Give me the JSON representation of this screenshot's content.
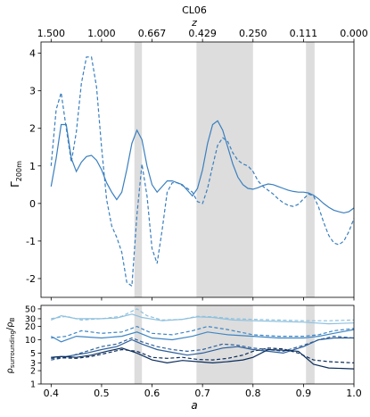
{
  "chart_data": [
    {
      "type": "line",
      "title": "CL06",
      "xlabel": "",
      "ylabel": "Γ200m",
      "ylabel_main": "Γ",
      "ylabel_sub": "200m",
      "top_axis_label": "z",
      "top_axis_ticks": [
        "1.500",
        "1.000",
        "0.667",
        "0.429",
        "0.250",
        "0.111",
        "0.000"
      ],
      "top_axis_tick_a": [
        0.4,
        0.5,
        0.6,
        0.7,
        0.8,
        0.9,
        1.0
      ],
      "xlim": [
        0.38,
        1.0
      ],
      "ylim": [
        -2.5,
        4.3
      ],
      "yticks": [
        -2,
        -1,
        0,
        1,
        2,
        3,
        4
      ],
      "grid": false,
      "shaded_bands": [
        [
          0.565,
          0.58
        ],
        [
          0.688,
          0.8
        ],
        [
          0.905,
          0.922
        ]
      ],
      "series": [
        {
          "style": "solid",
          "color": "#3a7fbf",
          "x": [
            0.4,
            0.41,
            0.42,
            0.43,
            0.44,
            0.45,
            0.46,
            0.47,
            0.48,
            0.49,
            0.5,
            0.51,
            0.52,
            0.53,
            0.54,
            0.55,
            0.56,
            0.57,
            0.58,
            0.59,
            0.6,
            0.61,
            0.62,
            0.63,
            0.64,
            0.65,
            0.66,
            0.67,
            0.68,
            0.69,
            0.7,
            0.71,
            0.72,
            0.73,
            0.74,
            0.75,
            0.76,
            0.77,
            0.78,
            0.79,
            0.8,
            0.81,
            0.82,
            0.83,
            0.84,
            0.85,
            0.86,
            0.87,
            0.88,
            0.89,
            0.9,
            0.91,
            0.92,
            0.93,
            0.94,
            0.95,
            0.96,
            0.97,
            0.98,
            0.99,
            1.0
          ],
          "y": [
            0.45,
            1.2,
            2.1,
            2.1,
            1.2,
            0.85,
            1.1,
            1.25,
            1.28,
            1.15,
            0.9,
            0.55,
            0.3,
            0.1,
            0.3,
            0.9,
            1.6,
            1.95,
            1.7,
            1.0,
            0.5,
            0.3,
            0.45,
            0.6,
            0.6,
            0.55,
            0.5,
            0.35,
            0.2,
            0.4,
            0.9,
            1.6,
            2.1,
            2.2,
            1.95,
            1.5,
            1.05,
            0.7,
            0.5,
            0.4,
            0.38,
            0.42,
            0.48,
            0.52,
            0.5,
            0.45,
            0.4,
            0.35,
            0.32,
            0.3,
            0.3,
            0.28,
            0.22,
            0.12,
            0.0,
            -0.1,
            -0.18,
            -0.22,
            -0.25,
            -0.22,
            -0.12
          ]
        },
        {
          "style": "dashed",
          "color": "#3a7fbf",
          "x": [
            0.4,
            0.41,
            0.42,
            0.43,
            0.44,
            0.45,
            0.46,
            0.47,
            0.48,
            0.49,
            0.5,
            0.51,
            0.52,
            0.53,
            0.54,
            0.55,
            0.56,
            0.57,
            0.58,
            0.59,
            0.6,
            0.61,
            0.62,
            0.63,
            0.64,
            0.65,
            0.66,
            0.67,
            0.68,
            0.69,
            0.7,
            0.71,
            0.72,
            0.73,
            0.74,
            0.75,
            0.76,
            0.77,
            0.78,
            0.79,
            0.8,
            0.81,
            0.82,
            0.83,
            0.84,
            0.85,
            0.86,
            0.87,
            0.88,
            0.89,
            0.9,
            0.91,
            0.92,
            0.93,
            0.94,
            0.95,
            0.96,
            0.97,
            0.98,
            0.99,
            1.0
          ],
          "y": [
            1.0,
            2.5,
            2.95,
            2.0,
            1.1,
            1.9,
            3.2,
            3.9,
            3.9,
            3.1,
            1.5,
            0.1,
            -0.6,
            -0.9,
            -1.3,
            -2.1,
            -2.2,
            -0.3,
            1.05,
            0.2,
            -1.2,
            -1.6,
            -0.7,
            0.3,
            0.55,
            0.55,
            0.48,
            0.4,
            0.3,
            0.05,
            0.0,
            0.4,
            1.0,
            1.55,
            1.75,
            1.65,
            1.35,
            1.15,
            1.05,
            1.0,
            0.85,
            0.6,
            0.45,
            0.35,
            0.25,
            0.12,
            0.02,
            -0.05,
            -0.08,
            -0.02,
            0.12,
            0.25,
            0.2,
            -0.1,
            -0.5,
            -0.85,
            -1.05,
            -1.1,
            -1.0,
            -0.75,
            -0.4
          ]
        }
      ]
    },
    {
      "type": "line",
      "xlabel": "a",
      "ylabel": "ρsurrounding/ρB",
      "ylabel_main": "ρ",
      "ylabel_sub1": "surrounding",
      "ylabel_mid": "/ρ",
      "ylabel_sub2": "B",
      "xlim": [
        0.38,
        1.0
      ],
      "ylim": [
        1,
        60
      ],
      "yscale": "log",
      "xticks": [
        "0.4",
        "0.5",
        "0.6",
        "0.7",
        "0.8",
        "0.9",
        "1.0"
      ],
      "xtick_values": [
        0.4,
        0.5,
        0.6,
        0.7,
        0.8,
        0.9,
        1.0
      ],
      "yticks": [
        1,
        2,
        3,
        5,
        10,
        20,
        30,
        50
      ],
      "yticklabels": [
        "1",
        "2",
        "3",
        "5",
        "10",
        "20",
        "30",
        "50"
      ],
      "grid": false,
      "shaded_bands": [
        [
          0.565,
          0.58
        ],
        [
          0.688,
          0.8
        ],
        [
          0.905,
          0.922
        ]
      ],
      "series": [
        {
          "style": "solid",
          "color": "#8fc1de",
          "x": [
            0.4,
            0.42,
            0.45,
            0.5,
            0.53,
            0.56,
            0.58,
            0.62,
            0.66,
            0.69,
            0.72,
            0.76,
            0.8,
            0.85,
            0.9,
            0.95,
            1.0
          ],
          "y": [
            28,
            35,
            30,
            30,
            31,
            38,
            32,
            27,
            29,
            33,
            32,
            28,
            27,
            26,
            25,
            23,
            24
          ]
        },
        {
          "style": "dashed",
          "color": "#8fc1de",
          "x": [
            0.4,
            0.43,
            0.46,
            0.5,
            0.54,
            0.57,
            0.59,
            0.62,
            0.66,
            0.69,
            0.72,
            0.76,
            0.8,
            0.85,
            0.9,
            0.95,
            1.0
          ],
          "y": [
            30,
            34,
            28,
            30,
            34,
            50,
            35,
            28,
            29,
            34,
            33,
            30,
            29,
            28,
            27,
            27,
            28
          ]
        },
        {
          "style": "solid",
          "color": "#3f86c4",
          "x": [
            0.4,
            0.42,
            0.45,
            0.5,
            0.54,
            0.57,
            0.6,
            0.64,
            0.68,
            0.71,
            0.75,
            0.8,
            0.85,
            0.9,
            0.93,
            0.96,
            1.0
          ],
          "y": [
            12,
            9,
            12,
            11,
            12,
            15,
            11,
            10,
            12,
            15,
            13,
            12,
            11,
            11,
            12,
            14,
            17
          ]
        },
        {
          "style": "dashed",
          "color": "#3f86c4",
          "x": [
            0.4,
            0.43,
            0.46,
            0.5,
            0.54,
            0.57,
            0.6,
            0.64,
            0.68,
            0.71,
            0.75,
            0.8,
            0.85,
            0.9,
            0.93,
            0.96,
            1.0
          ],
          "y": [
            11,
            12,
            16,
            14,
            15,
            20,
            14,
            13,
            16,
            20,
            17,
            13,
            12,
            12,
            13,
            16,
            18
          ]
        },
        {
          "style": "solid",
          "color": "#2e5f9a",
          "x": [
            0.4,
            0.43,
            0.47,
            0.5,
            0.53,
            0.56,
            0.58,
            0.61,
            0.64,
            0.67,
            0.7,
            0.74,
            0.77,
            0.8,
            0.83,
            0.86,
            0.9,
            0.93,
            0.96,
            1.0
          ],
          "y": [
            4,
            4.2,
            5,
            6,
            7,
            10,
            8,
            6,
            5.2,
            4.5,
            5,
            6.5,
            7,
            6,
            5.5,
            5,
            7,
            10,
            11,
            11
          ]
        },
        {
          "style": "dashed",
          "color": "#2e5f9a",
          "x": [
            0.4,
            0.43,
            0.47,
            0.5,
            0.53,
            0.56,
            0.58,
            0.61,
            0.64,
            0.67,
            0.7,
            0.74,
            0.77,
            0.8,
            0.83,
            0.86,
            0.9,
            0.93,
            0.96,
            1.0
          ],
          "y": [
            3.5,
            4,
            5.5,
            7,
            8,
            11,
            9,
            7,
            6,
            5.5,
            6,
            8,
            7.5,
            6.5,
            6,
            5.5,
            7.5,
            10,
            12,
            11
          ]
        },
        {
          "style": "solid",
          "color": "#0b2d5c",
          "x": [
            0.4,
            0.42,
            0.45,
            0.48,
            0.51,
            0.54,
            0.57,
            0.6,
            0.63,
            0.66,
            0.69,
            0.72,
            0.75,
            0.78,
            0.8,
            0.83,
            0.86,
            0.89,
            0.92,
            0.95,
            1.0
          ],
          "y": [
            4,
            4.2,
            4,
            4.5,
            5.5,
            6.5,
            5,
            3.5,
            3,
            3.4,
            3.2,
            3,
            3.2,
            3.5,
            4,
            6,
            5.8,
            5.5,
            2.8,
            2.3,
            2.2
          ]
        },
        {
          "style": "dashed",
          "color": "#0b2d5c",
          "x": [
            0.4,
            0.42,
            0.45,
            0.48,
            0.51,
            0.54,
            0.57,
            0.6,
            0.63,
            0.66,
            0.69,
            0.72,
            0.75,
            0.78,
            0.8,
            0.83,
            0.86,
            0.89,
            0.92,
            0.95,
            1.0
          ],
          "y": [
            3.8,
            3.9,
            3.8,
            4.2,
            5,
            6,
            5.5,
            4,
            3.8,
            4,
            3.6,
            3.5,
            3.8,
            4.5,
            5.5,
            6.5,
            6.2,
            5,
            3.5,
            3.2,
            3
          ]
        }
      ]
    }
  ]
}
